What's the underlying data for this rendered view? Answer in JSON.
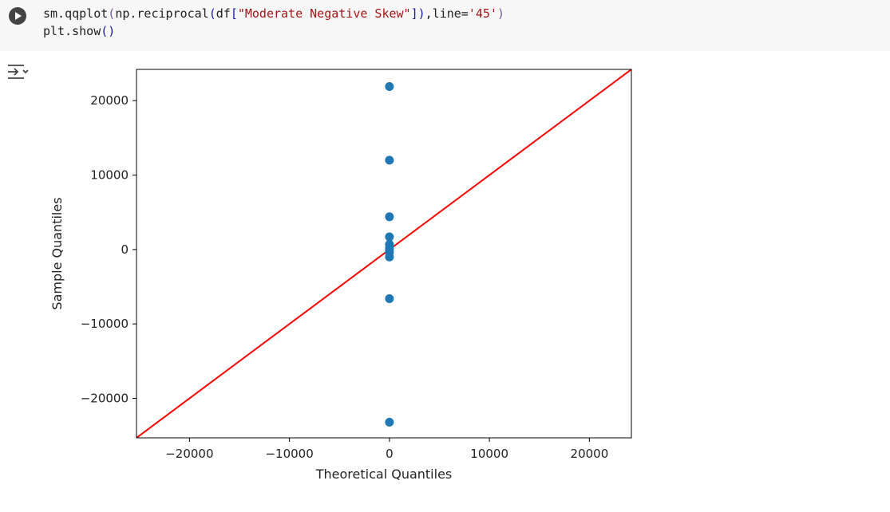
{
  "cell": {
    "code_line1_prefix": "sm.qqplot",
    "code_line1_p1": "(",
    "code_line1_mid": "np.reciprocal",
    "code_line1_p2": "(",
    "code_line1_df": "df",
    "code_line1_b1": "[",
    "code_line1_str": "\"Moderate Negative Skew\"",
    "code_line1_b2": "]",
    "code_line1_p3": ")",
    "code_line1_comma": ",line=",
    "code_line1_arg": "'45'",
    "code_line1_p4": ")",
    "code_line2_text": "plt.show",
    "code_line2_parens": "()"
  },
  "icons": {
    "run": "play-icon",
    "output_toggle": "output-toggle-icon"
  },
  "chart_data": {
    "type": "scatter",
    "xlabel": "Theoretical Quantiles",
    "ylabel": "Sample Quantiles",
    "xlim": [
      -25300,
      24200
    ],
    "ylim": [
      -25300,
      24200
    ],
    "xticks": [
      -20000,
      -10000,
      0,
      10000,
      20000
    ],
    "xtick_labels": [
      "−20000",
      "−10000",
      "0",
      "10000",
      "20000"
    ],
    "yticks": [
      20000,
      10000,
      0,
      -10000,
      -20000
    ],
    "ytick_labels": [
      "20000",
      "10000",
      "0",
      "−10000",
      "−20000"
    ],
    "points": [
      {
        "x": 0,
        "y": 21900
      },
      {
        "x": 0,
        "y": 12000
      },
      {
        "x": 0,
        "y": 4400
      },
      {
        "x": 0,
        "y": 1700
      },
      {
        "x": 0,
        "y": 700
      },
      {
        "x": 0,
        "y": 200
      },
      {
        "x": 0,
        "y": -100
      },
      {
        "x": 0,
        "y": -400
      },
      {
        "x": 0,
        "y": -1000
      },
      {
        "x": 0,
        "y": -6600
      },
      {
        "x": 0,
        "y": -23200
      }
    ],
    "reference_line": "45-degree",
    "colors": {
      "points": "#1f77b4",
      "line": "#ff0000",
      "frame": "#000000"
    },
    "grid": false
  }
}
